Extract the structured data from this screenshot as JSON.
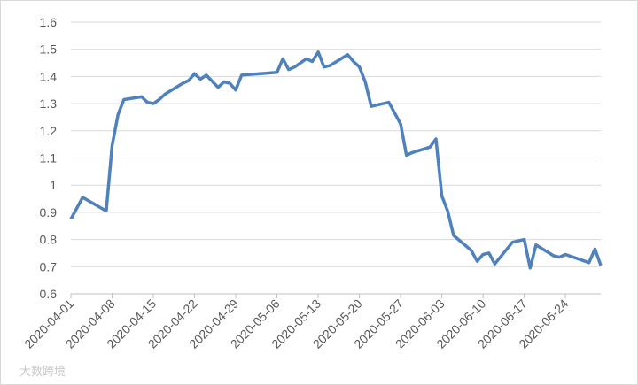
{
  "chart_data": {
    "type": "line",
    "x": [
      "2020-04-01",
      "2020-04-03",
      "2020-04-07",
      "2020-04-08",
      "2020-04-09",
      "2020-04-10",
      "2020-04-13",
      "2020-04-14",
      "2020-04-15",
      "2020-04-16",
      "2020-04-17",
      "2020-04-20",
      "2020-04-21",
      "2020-04-22",
      "2020-04-23",
      "2020-04-24",
      "2020-04-26",
      "2020-04-27",
      "2020-04-28",
      "2020-04-29",
      "2020-04-30",
      "2020-05-06",
      "2020-05-07",
      "2020-05-08",
      "2020-05-09",
      "2020-05-11",
      "2020-05-12",
      "2020-05-13",
      "2020-05-14",
      "2020-05-15",
      "2020-05-18",
      "2020-05-19",
      "2020-05-20",
      "2020-05-21",
      "2020-05-22",
      "2020-05-25",
      "2020-05-27",
      "2020-05-28",
      "2020-05-29",
      "2020-06-01",
      "2020-06-02",
      "2020-06-03",
      "2020-06-04",
      "2020-06-05",
      "2020-06-08",
      "2020-06-09",
      "2020-06-10",
      "2020-06-11",
      "2020-06-12",
      "2020-06-15",
      "2020-06-16",
      "2020-06-17",
      "2020-06-18",
      "2020-06-19",
      "2020-06-22",
      "2020-06-23",
      "2020-06-24",
      "2020-06-28",
      "2020-06-29",
      "2020-06-30"
    ],
    "values": [
      0.875,
      0.955,
      0.905,
      1.145,
      1.26,
      1.315,
      1.325,
      1.305,
      1.3,
      1.315,
      1.335,
      1.375,
      1.385,
      1.41,
      1.39,
      1.405,
      1.36,
      1.38,
      1.375,
      1.35,
      1.405,
      1.415,
      1.465,
      1.425,
      1.435,
      1.465,
      1.455,
      1.49,
      1.435,
      1.44,
      1.48,
      1.455,
      1.435,
      1.38,
      1.29,
      1.305,
      1.225,
      1.11,
      1.12,
      1.14,
      1.17,
      0.96,
      0.905,
      0.815,
      0.76,
      0.72,
      0.745,
      0.75,
      0.71,
      0.79,
      0.795,
      0.8,
      0.695,
      0.78,
      0.74,
      0.735,
      0.745,
      0.715,
      0.765,
      0.705
    ],
    "color": "#4f81bd",
    "xlim": [
      "2020-04-01",
      "2020-06-30"
    ],
    "xticks": [
      "2020-04-01",
      "2020-04-08",
      "2020-04-15",
      "2020-04-22",
      "2020-04-29",
      "2020-05-06",
      "2020-05-13",
      "2020-05-20",
      "2020-05-27",
      "2020-06-03",
      "2020-06-10",
      "2020-06-17",
      "2020-06-24"
    ],
    "ylim": [
      0.6,
      1.6
    ],
    "yticks": [
      {
        "value": 0.6,
        "label": "0.6"
      },
      {
        "value": 0.7,
        "label": "0.7"
      },
      {
        "value": 0.8,
        "label": "0.8"
      },
      {
        "value": 0.9,
        "label": "0.9"
      },
      {
        "value": 1,
        "label": "1"
      },
      {
        "value": 1.1,
        "label": "1.1"
      },
      {
        "value": 1.2,
        "label": "1.2"
      },
      {
        "value": 1.3,
        "label": "1.3"
      },
      {
        "value": 1.4,
        "label": "1.4"
      },
      {
        "value": 1.5,
        "label": "1.5"
      },
      {
        "value": 1.6,
        "label": "1.6"
      }
    ],
    "grid": true,
    "watermark": "大数跨境"
  }
}
